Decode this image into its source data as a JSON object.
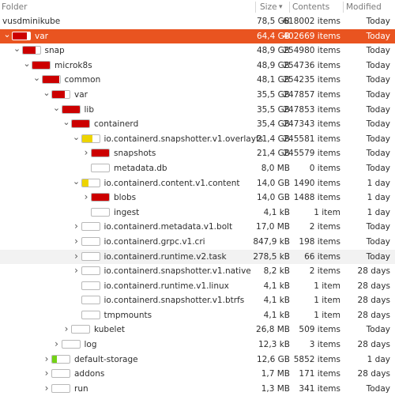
{
  "header": {
    "folder": "Folder",
    "size": "Size",
    "sort_icon": "chevron-down-icon",
    "contents": "Contents",
    "modified": "Modified"
  },
  "colors": {
    "selected_bg": "#e95420",
    "usage_red": "#cc0000",
    "usage_yellow": "#edd400",
    "usage_green": "#73d216"
  },
  "rows": [
    {
      "name": "vusdminikube",
      "size": "78,5 GB",
      "items": "618002 items",
      "modified": "Today",
      "level": 0,
      "expander": "none",
      "usage": null,
      "color": null
    },
    {
      "name": "var",
      "size": "64,4 GB",
      "items": "402669 items",
      "modified": "Today",
      "level": 0,
      "expander": "expanded",
      "usage": 0.82,
      "color": "red",
      "selected": true
    },
    {
      "name": "snap",
      "size": "48,9 GB",
      "items": "254980 items",
      "modified": "Today",
      "level": 1,
      "expander": "expanded",
      "usage": 0.76,
      "color": "red"
    },
    {
      "name": "microk8s",
      "size": "48,9 GB",
      "items": "254736 items",
      "modified": "Today",
      "level": 2,
      "expander": "expanded",
      "usage": 1.0,
      "color": "red"
    },
    {
      "name": "common",
      "size": "48,1 GB",
      "items": "254235 items",
      "modified": "Today",
      "level": 3,
      "expander": "expanded",
      "usage": 0.98,
      "color": "red"
    },
    {
      "name": "var",
      "size": "35,5 GB",
      "items": "247857 items",
      "modified": "Today",
      "level": 4,
      "expander": "expanded",
      "usage": 0.74,
      "color": "red"
    },
    {
      "name": "lib",
      "size": "35,5 GB",
      "items": "247853 items",
      "modified": "Today",
      "level": 5,
      "expander": "expanded",
      "usage": 1.0,
      "color": "red"
    },
    {
      "name": "containerd",
      "size": "35,4 GB",
      "items": "247343 items",
      "modified": "Today",
      "level": 6,
      "expander": "expanded",
      "usage": 1.0,
      "color": "red"
    },
    {
      "name": "io.containerd.snapshotter.v1.overlayfs",
      "size": "21,4 GB",
      "items": "245581 items",
      "modified": "Today",
      "level": 7,
      "expander": "expanded",
      "usage": 0.6,
      "color": "yellow"
    },
    {
      "name": "snapshots",
      "size": "21,4 GB",
      "items": "245579 items",
      "modified": "Today",
      "level": 8,
      "expander": "collapsed",
      "usage": 1.0,
      "color": "red"
    },
    {
      "name": "metadata.db",
      "size": "8,0 MB",
      "items": "0 items",
      "modified": "Today",
      "level": 8,
      "expander": "none",
      "usage": 0.0,
      "color": null
    },
    {
      "name": "io.containerd.content.v1.content",
      "size": "14,0 GB",
      "items": "1490 items",
      "modified": "1 day",
      "level": 7,
      "expander": "expanded",
      "usage": 0.4,
      "color": "yellow"
    },
    {
      "name": "blobs",
      "size": "14,0 GB",
      "items": "1488 items",
      "modified": "1 day",
      "level": 8,
      "expander": "collapsed",
      "usage": 1.0,
      "color": "red"
    },
    {
      "name": "ingest",
      "size": "4,1 kB",
      "items": "1 item",
      "modified": "1 day",
      "level": 8,
      "expander": "none",
      "usage": 0.0,
      "color": null
    },
    {
      "name": "io.containerd.metadata.v1.bolt",
      "size": "17,0 MB",
      "items": "2 items",
      "modified": "Today",
      "level": 7,
      "expander": "collapsed",
      "usage": 0.0,
      "color": null
    },
    {
      "name": "io.containerd.grpc.v1.cri",
      "size": "847,9 kB",
      "items": "198 items",
      "modified": "Today",
      "level": 7,
      "expander": "collapsed",
      "usage": 0.0,
      "color": null
    },
    {
      "name": "io.containerd.runtime.v2.task",
      "size": "278,5 kB",
      "items": "66 items",
      "modified": "Today",
      "level": 7,
      "expander": "collapsed",
      "usage": 0.0,
      "color": null,
      "hover": true
    },
    {
      "name": "io.containerd.snapshotter.v1.native",
      "size": "8,2 kB",
      "items": "2 items",
      "modified": "28 days",
      "level": 7,
      "expander": "collapsed",
      "usage": 0.0,
      "color": null
    },
    {
      "name": "io.containerd.runtime.v1.linux",
      "size": "4,1 kB",
      "items": "1 item",
      "modified": "28 days",
      "level": 7,
      "expander": "none",
      "usage": 0.0,
      "color": null
    },
    {
      "name": "io.containerd.snapshotter.v1.btrfs",
      "size": "4,1 kB",
      "items": "1 item",
      "modified": "28 days",
      "level": 7,
      "expander": "none",
      "usage": 0.0,
      "color": null
    },
    {
      "name": "tmpmounts",
      "size": "4,1 kB",
      "items": "1 item",
      "modified": "28 days",
      "level": 7,
      "expander": "none",
      "usage": 0.0,
      "color": null
    },
    {
      "name": "kubelet",
      "size": "26,8 MB",
      "items": "509 items",
      "modified": "Today",
      "level": 6,
      "expander": "collapsed",
      "usage": 0.0,
      "color": null
    },
    {
      "name": "log",
      "size": "12,3 kB",
      "items": "3 items",
      "modified": "28 days",
      "level": 5,
      "expander": "collapsed",
      "usage": 0.0,
      "color": null
    },
    {
      "name": "default-storage",
      "size": "12,6 GB",
      "items": "5852 items",
      "modified": "1 day",
      "level": 4,
      "expander": "collapsed",
      "usage": 0.26,
      "color": "green"
    },
    {
      "name": "addons",
      "size": "1,7 MB",
      "items": "171 items",
      "modified": "28 days",
      "level": 4,
      "expander": "collapsed",
      "usage": 0.0,
      "color": null
    },
    {
      "name": "run",
      "size": "1,3 MB",
      "items": "341 items",
      "modified": "Today",
      "level": 4,
      "expander": "collapsed",
      "usage": 0.0,
      "color": null
    }
  ]
}
